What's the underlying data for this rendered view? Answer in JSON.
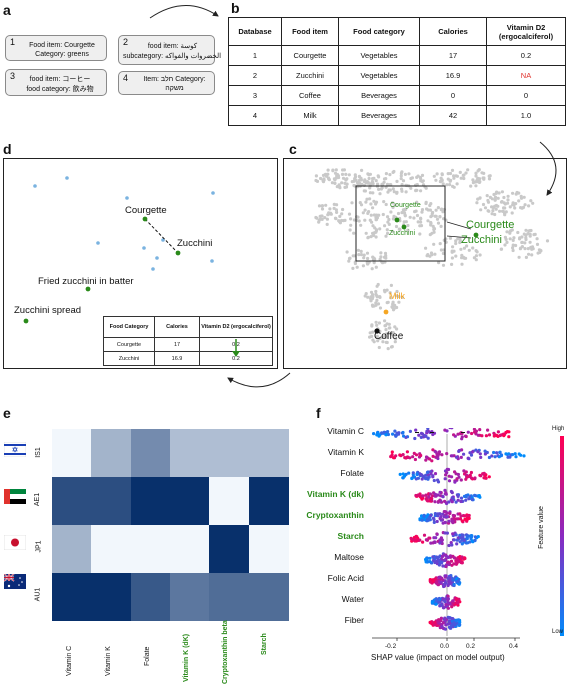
{
  "panel_labels": {
    "a": "a",
    "b": "b",
    "c": "c",
    "d": "d",
    "e": "e",
    "f": "f"
  },
  "panel_a": {
    "boxes": [
      {
        "num": "1",
        "line1": "Food item: Courgette",
        "line2": "Category: greens"
      },
      {
        "num": "2",
        "line1": "food item: كوسة",
        "line2": "subcategory: الخضروات والفواكه"
      },
      {
        "num": "3",
        "line1": "food item: コーヒー",
        "line2": "food category: 飲み物"
      },
      {
        "num": "4",
        "line1": "Item: חלב Category:",
        "line2": "משקה"
      }
    ]
  },
  "panel_b": {
    "headers": [
      "Database",
      "Food item",
      "Food category",
      "Calories",
      "Vitamin D2 (ergocalciferol)"
    ],
    "rows": [
      [
        "1",
        "Courgette",
        "Vegetables",
        "17",
        "0.2"
      ],
      [
        "2",
        "Zucchini",
        "Vegetables",
        "16.9",
        "NA"
      ],
      [
        "3",
        "Coffee",
        "Beverages",
        "0",
        "0"
      ],
      [
        "4",
        "Milk",
        "Beverages",
        "42",
        "1.0"
      ]
    ]
  },
  "panel_d": {
    "labels": {
      "courgette": "Courgette",
      "zucchini": "Zucchini",
      "fried": "Fried zucchini in batter",
      "spread": "Zucchini spread"
    },
    "table_headers": [
      "Food Category",
      "Calories",
      "Vitamin D2 (ergocalciferol)"
    ],
    "table_rows": [
      [
        "Courgette",
        "17",
        "0.2"
      ],
      [
        "Zucchini",
        "16.9",
        "0.2"
      ]
    ]
  },
  "panel_c": {
    "labels": {
      "courgette_small": "Courgette",
      "zucchini_small": "Zucchini",
      "courgette_big": "Courgette",
      "zucchini_big": "Zucchini",
      "milk": "Milk",
      "coffee": "Coffee"
    }
  },
  "panel_e": {
    "countries": [
      "IS1",
      "AE1",
      "JP1",
      "AU1"
    ],
    "flags": [
      "israel-flag-icon",
      "uae-flag-icon",
      "japan-flag-icon",
      "australia-flag-icon"
    ],
    "nutrients": [
      "Vitamin C",
      "Vitamin K",
      "Folate",
      "Vitamin K (dK)",
      "Cryptoxanthin beta",
      "Starch"
    ],
    "highlighted_nutrients": [
      "Vitamin K (dK)",
      "Cryptoxanthin beta",
      "Starch"
    ],
    "values": [
      [
        0.02,
        0.35,
        0.55,
        0.3,
        0.3,
        0.3
      ],
      [
        0.85,
        0.85,
        1.0,
        1.0,
        0.02,
        1.0
      ],
      [
        0.35,
        0.02,
        0.02,
        0.02,
        1.0,
        0.02
      ],
      [
        1.0,
        1.0,
        0.8,
        0.65,
        0.7,
        0.7
      ]
    ]
  },
  "panel_f": {
    "features": [
      "Vitamin C",
      "Vitamin K",
      "Folate",
      "Vitamin K (dk)",
      "Cryptoxanthin",
      "Starch",
      "Maltose",
      "Folic Acid",
      "Water",
      "Fiber"
    ],
    "highlighted_features": [
      "Vitamin K (dk)",
      "Cryptoxanthin",
      "Starch"
    ],
    "xlabel": "SHAP value (impact on model output)",
    "xticks": [
      "-0.2",
      "0.0",
      "0.2",
      "0.4"
    ],
    "colorbar": {
      "high": "High",
      "low": "Low",
      "label": "Feature value",
      "high_color": "#ff0052",
      "low_color": "#008bfb"
    }
  },
  "colors": {
    "green": "#2a8a1a",
    "orange": "#f5a623",
    "point_blue": "#7ab3e0",
    "na_red": "#e0322c"
  }
}
